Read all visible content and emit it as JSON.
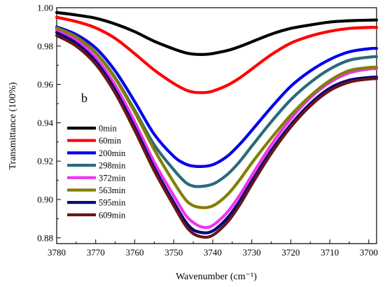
{
  "chart_data": {
    "type": "line",
    "panel_label": "b",
    "xlabel": "Wavenumber (cm⁻¹)",
    "ylabel": "Transmittance (100%)",
    "xlim": [
      3780,
      3698
    ],
    "ylim": [
      0.877,
      1.0
    ],
    "x_reversed": true,
    "grid": false,
    "legend_position": "middle-left",
    "x_ticks": [
      3780,
      3770,
      3760,
      3750,
      3740,
      3730,
      3720,
      3710,
      3700
    ],
    "y_ticks": [
      0.88,
      0.9,
      0.92,
      0.94,
      0.96,
      0.98,
      1.0
    ],
    "y_tick_labels": [
      "0.88",
      "0.90",
      "0.92",
      "0.94",
      "0.96",
      "0.98",
      "1.00"
    ],
    "x": [
      3780,
      3775,
      3770,
      3765,
      3760,
      3755,
      3750,
      3747,
      3745,
      3743,
      3741,
      3739,
      3736,
      3733,
      3730,
      3725,
      3720,
      3715,
      3710,
      3705,
      3700,
      3698
    ],
    "series": [
      {
        "name": "0min",
        "color": "#000000",
        "values": [
          0.9975,
          0.9962,
          0.9945,
          0.9915,
          0.9875,
          0.9825,
          0.9785,
          0.9765,
          0.9758,
          0.9756,
          0.9758,
          0.9765,
          0.9778,
          0.9798,
          0.9822,
          0.9862,
          0.9892,
          0.991,
          0.9925,
          0.9932,
          0.9935,
          0.9936
        ]
      },
      {
        "name": "60min",
        "color": "#ff0000",
        "values": [
          0.995,
          0.9928,
          0.9895,
          0.984,
          0.976,
          0.9675,
          0.9605,
          0.9572,
          0.956,
          0.9557,
          0.956,
          0.9572,
          0.9598,
          0.9635,
          0.968,
          0.9755,
          0.9815,
          0.9852,
          0.9877,
          0.9892,
          0.9897,
          0.9897
        ]
      },
      {
        "name": "200min",
        "color": "#0000ee",
        "values": [
          0.99,
          0.986,
          0.979,
          0.967,
          0.951,
          0.934,
          0.9225,
          0.9185,
          0.9174,
          0.9172,
          0.9176,
          0.919,
          0.923,
          0.929,
          0.936,
          0.948,
          0.959,
          0.967,
          0.973,
          0.977,
          0.9786,
          0.9788
        ]
      },
      {
        "name": "298min",
        "color": "#2a6a7a",
        "values": [
          0.989,
          0.9845,
          0.9765,
          0.9635,
          0.9465,
          0.9285,
          0.9155,
          0.909,
          0.907,
          0.9068,
          0.9074,
          0.909,
          0.9135,
          0.92,
          0.9278,
          0.9405,
          0.952,
          0.961,
          0.968,
          0.9726,
          0.9742,
          0.9745
        ]
      },
      {
        "name": "372min",
        "color": "#ee33ee",
        "values": [
          0.988,
          0.983,
          0.974,
          0.9595,
          0.9405,
          0.9195,
          0.902,
          0.892,
          0.888,
          0.8858,
          0.8856,
          0.888,
          0.894,
          0.9025,
          0.9125,
          0.9285,
          0.942,
          0.953,
          0.961,
          0.966,
          0.968,
          0.9682
        ]
      },
      {
        "name": "563min",
        "color": "#808000",
        "values": [
          0.9895,
          0.9848,
          0.9765,
          0.963,
          0.9455,
          0.926,
          0.909,
          0.9,
          0.8968,
          0.8958,
          0.896,
          0.8978,
          0.903,
          0.9105,
          0.919,
          0.932,
          0.944,
          0.954,
          0.962,
          0.9672,
          0.9688,
          0.969
        ]
      },
      {
        "name": "595min",
        "color": "#000080",
        "values": [
          0.987,
          0.9815,
          0.972,
          0.957,
          0.9375,
          0.9165,
          0.8985,
          0.8885,
          0.8842,
          0.8828,
          0.8828,
          0.885,
          0.891,
          0.8995,
          0.9095,
          0.9255,
          0.939,
          0.95,
          0.958,
          0.9622,
          0.9636,
          0.9638
        ]
      },
      {
        "name": "609min",
        "color": "#6a1515",
        "values": [
          0.9855,
          0.98,
          0.9705,
          0.9555,
          0.936,
          0.915,
          0.8968,
          0.8865,
          0.8822,
          0.8806,
          0.8805,
          0.8828,
          0.8888,
          0.8975,
          0.9078,
          0.924,
          0.9378,
          0.9488,
          0.9568,
          0.9612,
          0.9628,
          0.963
        ]
      }
    ]
  }
}
